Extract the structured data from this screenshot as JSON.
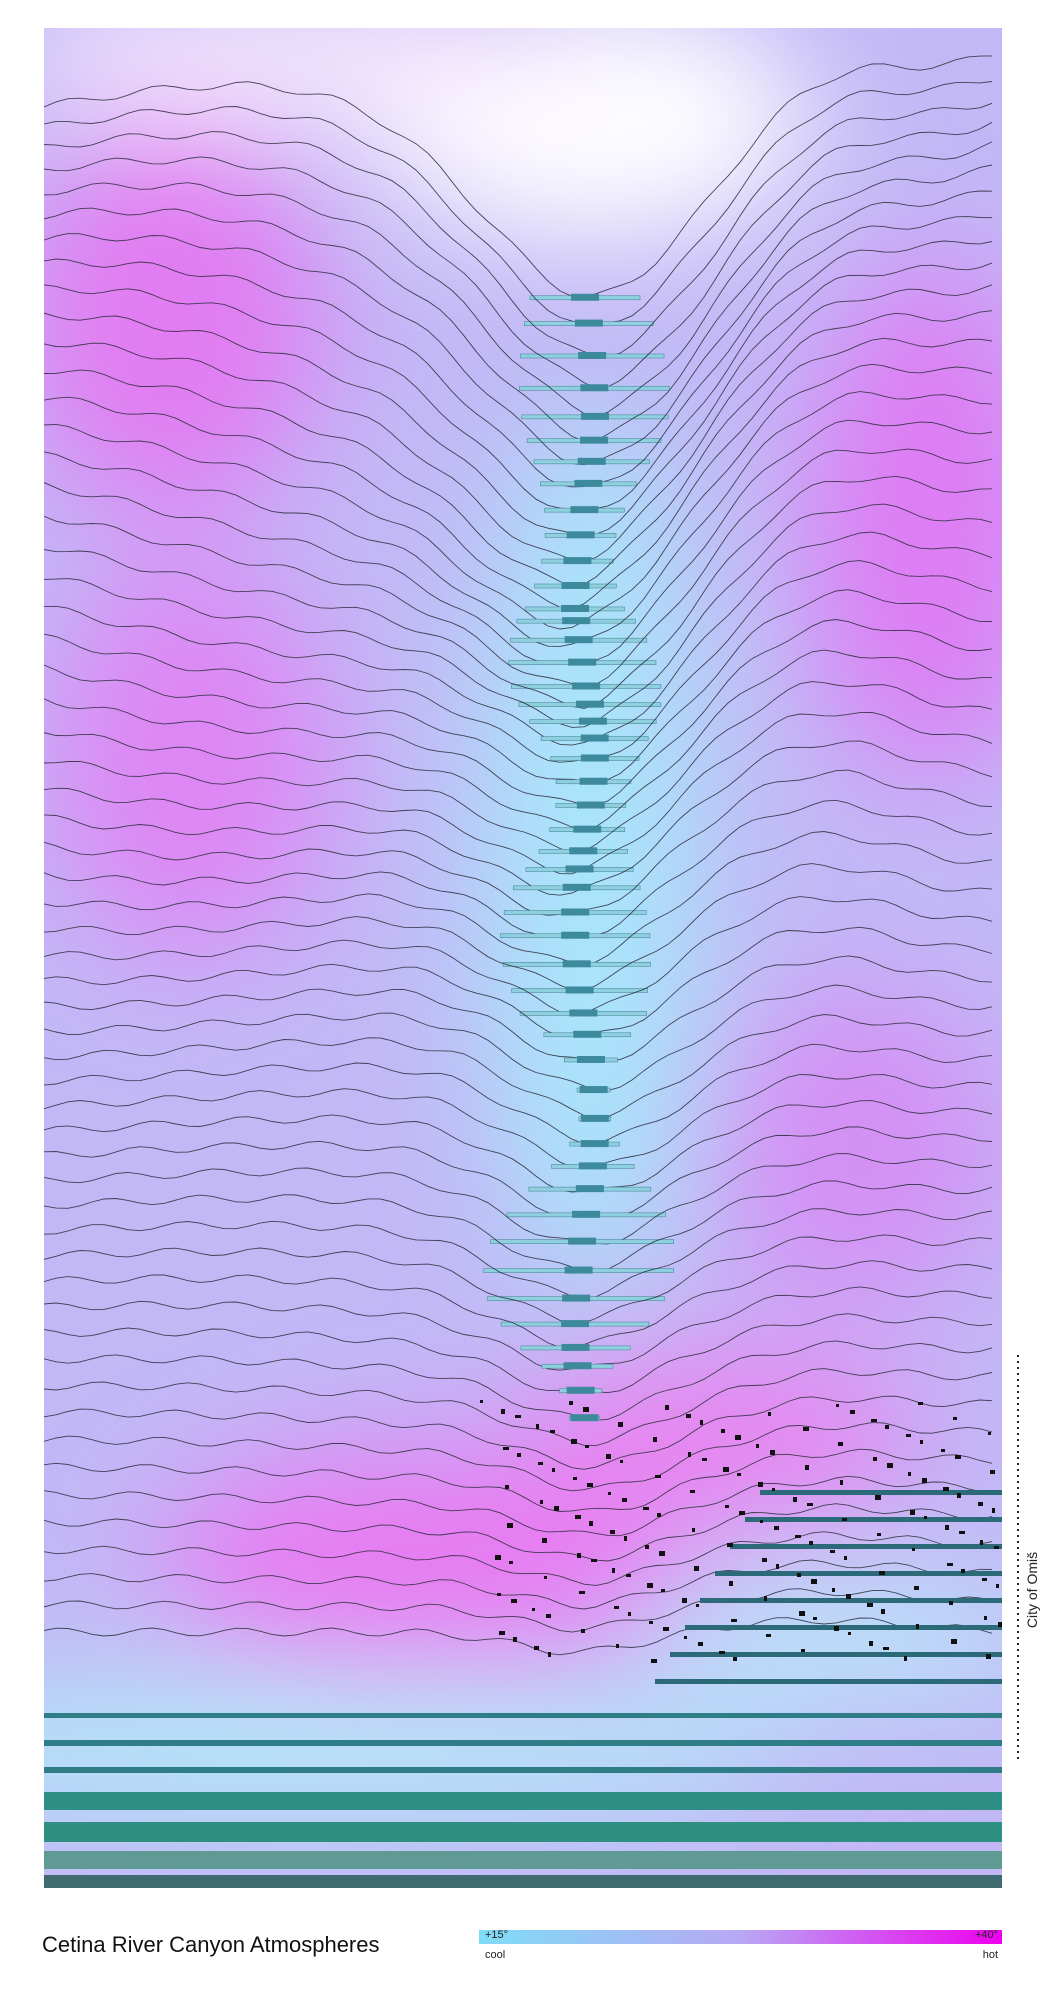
{
  "title": "Cetina River Canyon Atmospheres",
  "legend": {
    "low": "+15°",
    "low_label": "cool",
    "high": "+40°",
    "high_label": "hot"
  },
  "annotation": "City of Omiš"
}
